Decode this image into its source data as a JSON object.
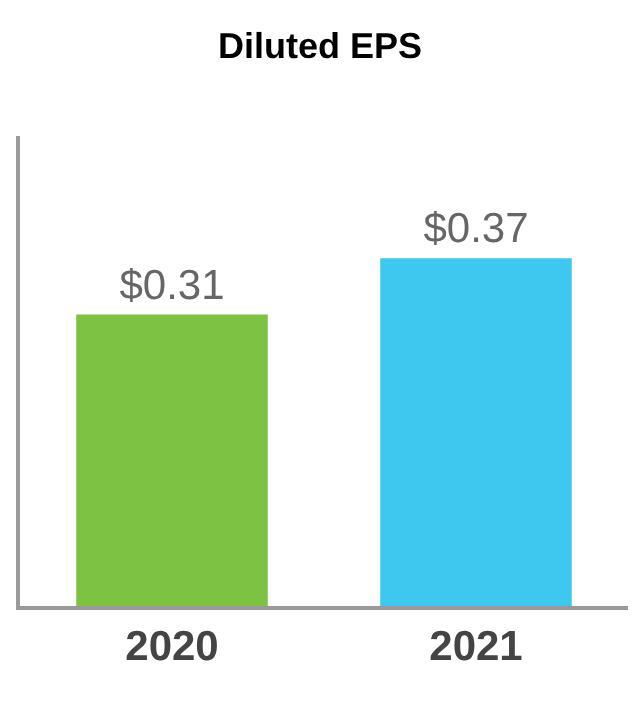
{
  "chart_data": {
    "type": "bar",
    "title": "Diluted EPS",
    "categories": [
      "2020",
      "2021"
    ],
    "values": [
      0.31,
      0.37
    ],
    "colors": [
      "#7dc242",
      "#3ec8f0"
    ],
    "value_labels": [
      "$0.31",
      "$0.37"
    ],
    "ylim": [
      0,
      0.5
    ]
  }
}
